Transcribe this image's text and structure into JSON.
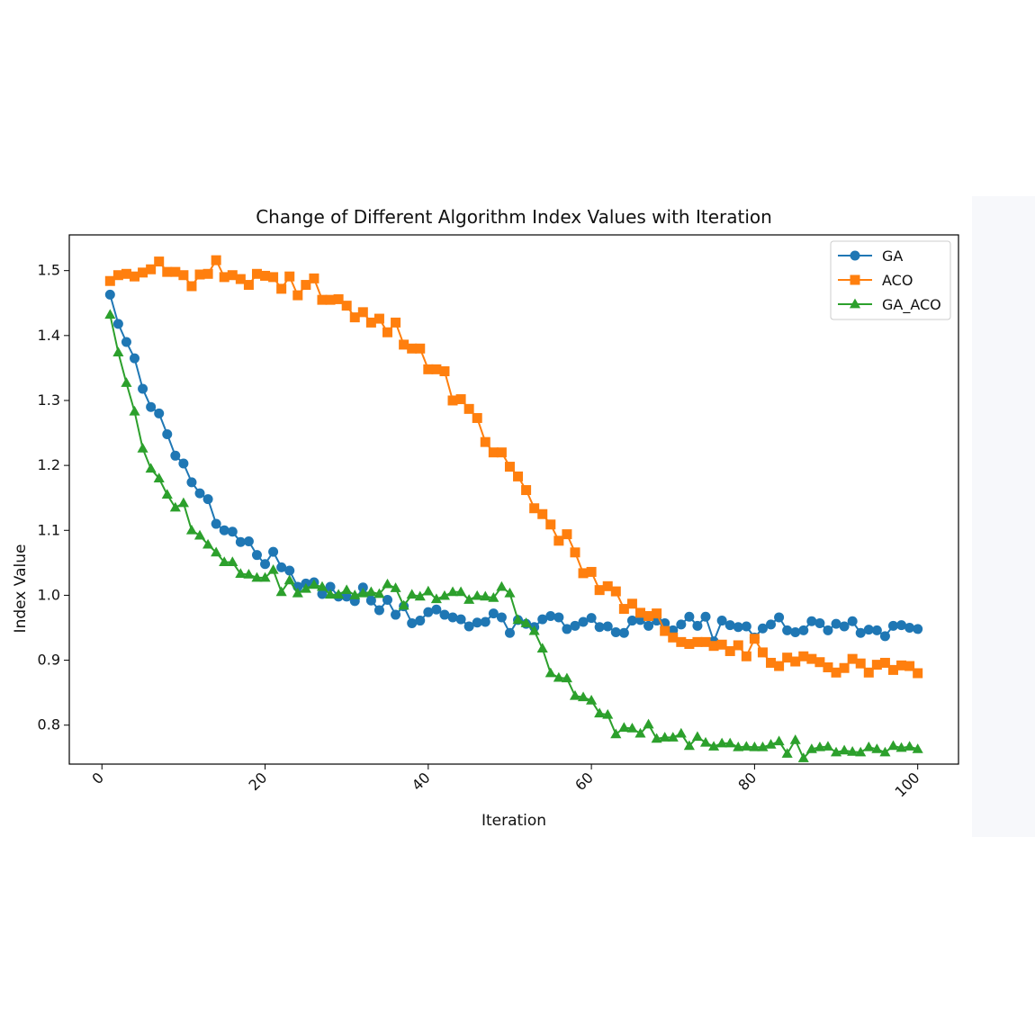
{
  "chart_data": {
    "type": "line",
    "title": "Change of Different Algorithm Index Values with Iteration",
    "xlabel": "Iteration",
    "ylabel": "Index Value",
    "xlim": [
      -4,
      105
    ],
    "ylim": [
      0.74,
      1.555
    ],
    "xticks": [
      0,
      20,
      40,
      60,
      80,
      100
    ],
    "yticks": [
      0.8,
      0.9,
      1.0,
      1.1,
      1.2,
      1.3,
      1.4,
      1.5
    ],
    "xtick_labels": [
      "0",
      "20",
      "40",
      "60",
      "80",
      "100"
    ],
    "ytick_labels": [
      "0.8",
      "0.9",
      "1.0",
      "1.1",
      "1.2",
      "1.3",
      "1.4",
      "1.5"
    ],
    "grid": false,
    "legend_position": "top-right",
    "x": [
      1,
      2,
      3,
      4,
      5,
      6,
      7,
      8,
      9,
      10,
      11,
      12,
      13,
      14,
      15,
      16,
      17,
      18,
      19,
      20,
      21,
      22,
      23,
      24,
      25,
      26,
      27,
      28,
      29,
      30,
      31,
      32,
      33,
      34,
      35,
      36,
      37,
      38,
      39,
      40,
      41,
      42,
      43,
      44,
      45,
      46,
      47,
      48,
      49,
      50,
      51,
      52,
      53,
      54,
      55,
      56,
      57,
      58,
      59,
      60,
      61,
      62,
      63,
      64,
      65,
      66,
      67,
      68,
      69,
      70,
      71,
      72,
      73,
      74,
      75,
      76,
      77,
      78,
      79,
      80,
      81,
      82,
      83,
      84,
      85,
      86,
      87,
      88,
      89,
      90,
      91,
      92,
      93,
      94,
      95,
      96,
      97,
      98,
      99,
      100
    ],
    "series": [
      {
        "name": "GA",
        "color": "#1f77b4",
        "marker": "circle",
        "values": [
          1.463,
          1.418,
          1.39,
          1.365,
          1.318,
          1.29,
          1.28,
          1.248,
          1.215,
          1.203,
          1.174,
          1.157,
          1.148,
          1.11,
          1.1,
          1.098,
          1.082,
          1.083,
          1.062,
          1.048,
          1.067,
          1.043,
          1.038,
          1.013,
          1.018,
          1.02,
          1.002,
          1.013,
          0.998,
          0.998,
          0.991,
          1.012,
          0.992,
          0.977,
          0.993,
          0.97,
          0.983,
          0.957,
          0.961,
          0.974,
          0.978,
          0.97,
          0.966,
          0.963,
          0.952,
          0.958,
          0.959,
          0.972,
          0.966,
          0.942,
          0.962,
          0.956,
          0.951,
          0.963,
          0.968,
          0.966,
          0.948,
          0.953,
          0.959,
          0.965,
          0.951,
          0.952,
          0.943,
          0.942,
          0.961,
          0.962,
          0.953,
          0.961,
          0.957,
          0.946,
          0.955,
          0.967,
          0.953,
          0.967,
          0.929,
          0.961,
          0.954,
          0.951,
          0.952,
          0.935,
          0.949,
          0.955,
          0.966,
          0.946,
          0.943,
          0.946,
          0.96,
          0.957,
          0.946,
          0.956,
          0.952,
          0.96,
          0.942,
          0.947,
          0.946,
          0.937,
          0.953,
          0.954,
          0.95,
          0.948
        ]
      },
      {
        "name": "ACO",
        "color": "#ff7f0e",
        "marker": "square",
        "values": [
          1.484,
          1.493,
          1.495,
          1.491,
          1.497,
          1.502,
          1.514,
          1.498,
          1.498,
          1.493,
          1.476,
          1.494,
          1.495,
          1.516,
          1.49,
          1.493,
          1.487,
          1.478,
          1.495,
          1.492,
          1.49,
          1.472,
          1.491,
          1.462,
          1.478,
          1.488,
          1.455,
          1.455,
          1.456,
          1.446,
          1.428,
          1.436,
          1.42,
          1.426,
          1.405,
          1.42,
          1.386,
          1.38,
          1.38,
          1.348,
          1.348,
          1.345,
          1.3,
          1.302,
          1.287,
          1.273,
          1.236,
          1.22,
          1.22,
          1.198,
          1.183,
          1.162,
          1.134,
          1.125,
          1.109,
          1.084,
          1.094,
          1.066,
          1.034,
          1.036,
          1.008,
          1.014,
          1.006,
          0.979,
          0.987,
          0.973,
          0.968,
          0.972,
          0.945,
          0.935,
          0.928,
          0.925,
          0.928,
          0.928,
          0.922,
          0.924,
          0.914,
          0.923,
          0.906,
          0.933,
          0.912,
          0.896,
          0.891,
          0.904,
          0.898,
          0.906,
          0.902,
          0.897,
          0.889,
          0.881,
          0.888,
          0.902,
          0.895,
          0.881,
          0.893,
          0.896,
          0.885,
          0.892,
          0.891,
          0.88
        ]
      },
      {
        "name": "GA_ACO",
        "color": "#2ca02c",
        "marker": "triangle",
        "values": [
          1.432,
          1.374,
          1.327,
          1.283,
          1.226,
          1.195,
          1.18,
          1.155,
          1.135,
          1.142,
          1.1,
          1.092,
          1.078,
          1.066,
          1.051,
          1.051,
          1.033,
          1.032,
          1.027,
          1.027,
          1.039,
          1.005,
          1.023,
          1.003,
          1.01,
          1.016,
          1.013,
          1.001,
          1.001,
          1.008,
          1.0,
          1.003,
          1.005,
          1.002,
          1.017,
          1.011,
          0.984,
          1.001,
          0.998,
          1.006,
          0.994,
          0.999,
          1.005,
          1.005,
          0.993,
          0.999,
          0.998,
          0.996,
          1.013,
          1.003,
          0.962,
          0.957,
          0.945,
          0.918,
          0.88,
          0.873,
          0.872,
          0.845,
          0.843,
          0.838,
          0.818,
          0.816,
          0.786,
          0.796,
          0.795,
          0.787,
          0.801,
          0.779,
          0.781,
          0.781,
          0.787,
          0.768,
          0.782,
          0.773,
          0.767,
          0.772,
          0.772,
          0.766,
          0.767,
          0.766,
          0.766,
          0.77,
          0.775,
          0.756,
          0.777,
          0.749,
          0.763,
          0.766,
          0.767,
          0.758,
          0.761,
          0.759,
          0.758,
          0.766,
          0.763,
          0.758,
          0.768,
          0.765,
          0.767,
          0.763
        ]
      }
    ]
  }
}
